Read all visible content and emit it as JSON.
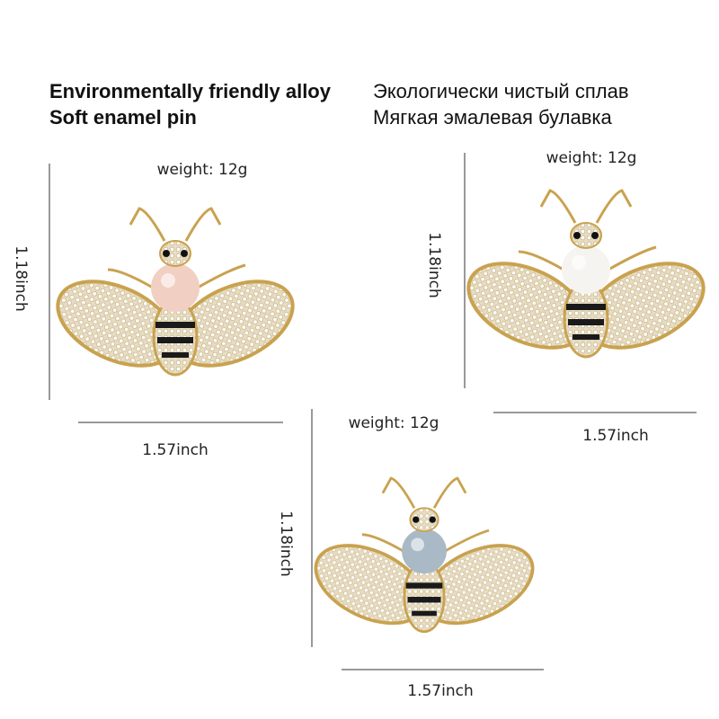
{
  "header": {
    "english": [
      "Environmentally friendly alloy",
      "Soft enamel pin"
    ],
    "russian": [
      "Экологически чистый сплав",
      "Мягкая эмалевая булавка"
    ]
  },
  "products": [
    {
      "weight": "weight: 12g",
      "height": "1.18inch",
      "width": "1.57inch"
    },
    {
      "weight": "weight: 12g",
      "height": "1.18inch",
      "width": "1.57inch"
    },
    {
      "weight": "weight: 12g",
      "height": "1.18inch",
      "width": "1.57inch"
    }
  ]
}
